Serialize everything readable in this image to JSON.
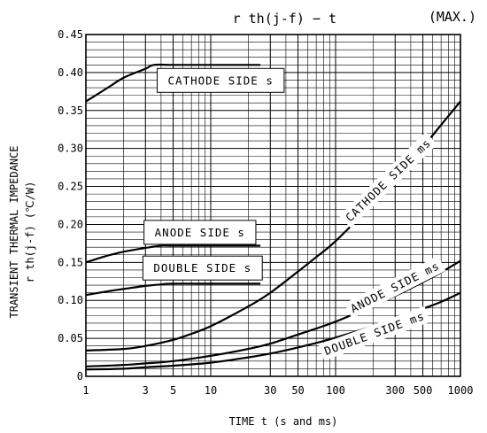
{
  "chart_data": {
    "type": "line",
    "title": "r th(j-f) − t",
    "title_qualifier": "(MAX.)",
    "xlabel": "TIME   t  (s and ms)",
    "ylabel_line1": "TRANSIENT THERMAL IMPEDANCE",
    "ylabel_line2": "r th(j-f)  (℃/W)",
    "xscale": "log",
    "xlim": [
      1,
      1000
    ],
    "ylim": [
      0,
      0.45
    ],
    "grid": true,
    "x_tick_labels": [
      "1",
      "3",
      "5",
      "10",
      "30",
      "50",
      "100",
      "300",
      "500",
      "1000"
    ],
    "x_tick_values": [
      1,
      3,
      5,
      10,
      30,
      50,
      100,
      300,
      500,
      1000
    ],
    "y_tick_labels": [
      "0",
      "0.05",
      "0.10",
      "0.15",
      "0.20",
      "0.25",
      "0.30",
      "0.35",
      "0.40",
      "0.45"
    ],
    "y_tick_values": [
      0,
      0.05,
      0.1,
      0.15,
      0.2,
      0.25,
      0.3,
      0.35,
      0.4,
      0.45
    ],
    "series": [
      {
        "name": "CATHODE SIDE s",
        "x": [
          1,
          1.5,
          2,
          3,
          3.5,
          5,
          10,
          20,
          25
        ],
        "y": [
          0.362,
          0.38,
          0.393,
          0.405,
          0.41,
          0.41,
          0.41,
          0.41,
          0.41
        ]
      },
      {
        "name": "ANODE SIDE s",
        "x": [
          1,
          1.5,
          2,
          3,
          4,
          5,
          10,
          20,
          25
        ],
        "y": [
          0.15,
          0.159,
          0.164,
          0.169,
          0.172,
          0.172,
          0.172,
          0.172,
          0.172
        ]
      },
      {
        "name": "DOUBLE SIDE s",
        "x": [
          1,
          1.5,
          2,
          3,
          4,
          5,
          10,
          20,
          25
        ],
        "y": [
          0.107,
          0.112,
          0.115,
          0.119,
          0.121,
          0.122,
          0.122,
          0.122,
          0.122
        ]
      },
      {
        "name": "CATHODE SIDE ms",
        "x": [
          1,
          2,
          3,
          5,
          7,
          10,
          20,
          30,
          50,
          70,
          100,
          200,
          300,
          500,
          700,
          1000
        ],
        "y": [
          0.034,
          0.036,
          0.04,
          0.048,
          0.056,
          0.066,
          0.092,
          0.11,
          0.138,
          0.157,
          0.178,
          0.228,
          0.26,
          0.302,
          0.331,
          0.362
        ]
      },
      {
        "name": "ANODE SIDE ms",
        "x": [
          1,
          2,
          3,
          5,
          10,
          20,
          30,
          50,
          70,
          100,
          200,
          300,
          500,
          700,
          1000
        ],
        "y": [
          0.013,
          0.015,
          0.017,
          0.02,
          0.027,
          0.036,
          0.043,
          0.055,
          0.063,
          0.072,
          0.093,
          0.106,
          0.124,
          0.137,
          0.152
        ]
      },
      {
        "name": "DOUBLE SIDE ms",
        "x": [
          1,
          2,
          3,
          5,
          10,
          20,
          30,
          50,
          70,
          100,
          200,
          300,
          500,
          700,
          1000
        ],
        "y": [
          0.009,
          0.01,
          0.012,
          0.014,
          0.018,
          0.025,
          0.03,
          0.038,
          0.044,
          0.051,
          0.066,
          0.076,
          0.089,
          0.098,
          0.11
        ]
      }
    ],
    "labels": [
      {
        "text": "CATHODE SIDE s",
        "x": 12,
        "y": 0.389,
        "rotate": 0,
        "boxed": true
      },
      {
        "text": "ANODE SIDE s",
        "x": 8.2,
        "y": 0.189,
        "rotate": 0,
        "boxed": true
      },
      {
        "text": "DOUBLE SIDE s",
        "x": 8.6,
        "y": 0.142,
        "rotate": 0,
        "boxed": true
      },
      {
        "text": "CATHODE SIDE ms",
        "x": 265,
        "y": 0.258,
        "rotate": -44,
        "boxed": false
      },
      {
        "text": "ANODE SIDE ms",
        "x": 300,
        "y": 0.117,
        "rotate": -27,
        "boxed": false
      },
      {
        "text": "DOUBLE SIDE ms",
        "x": 205,
        "y": 0.056,
        "rotate": -20,
        "boxed": false
      }
    ]
  }
}
